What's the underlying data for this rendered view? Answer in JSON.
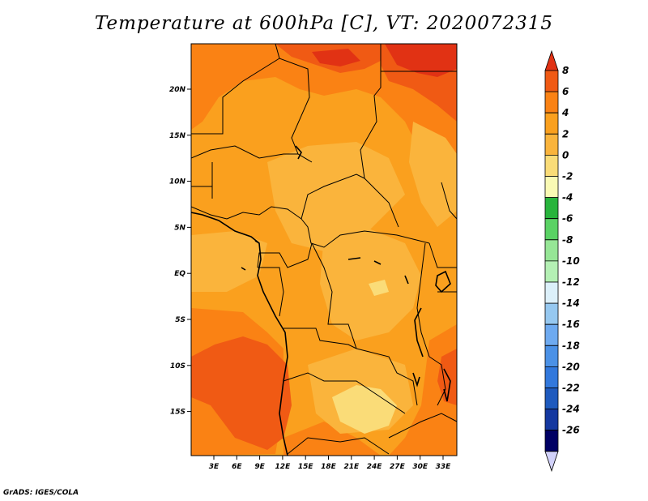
{
  "title": "Temperature at 600hPa [C], VT: 2020072315",
  "footer": "GrADS: IGES/COLA",
  "map": {
    "lat_ticks": [
      "20N",
      "15N",
      "10N",
      "5N",
      "EQ",
      "5S",
      "10S",
      "15S"
    ],
    "lon_ticks": [
      "3E",
      "6E",
      "9E",
      "12E",
      "15E",
      "18E",
      "21E",
      "24E",
      "27E",
      "30E",
      "33E"
    ]
  },
  "colorbar": {
    "labels": [
      "8",
      "6",
      "4",
      "2",
      "0",
      "-2",
      "-4",
      "-6",
      "-8",
      "-10",
      "-12",
      "-14",
      "-16",
      "-18",
      "-20",
      "-22",
      "-24",
      "-26"
    ],
    "colors": [
      "#e13214",
      "#f05a14",
      "#fa8214",
      "#faa01e",
      "#fab43c",
      "#fadc78",
      "#fafab4",
      "#28b43c",
      "#5ad264",
      "#96e696",
      "#b4f0b4",
      "#dcf0fa",
      "#96c8f0",
      "#6eaaf0",
      "#4b91e6",
      "#3278dc",
      "#1e5abe",
      "#1438a0",
      "#000064",
      "#d2d2fa"
    ]
  }
}
